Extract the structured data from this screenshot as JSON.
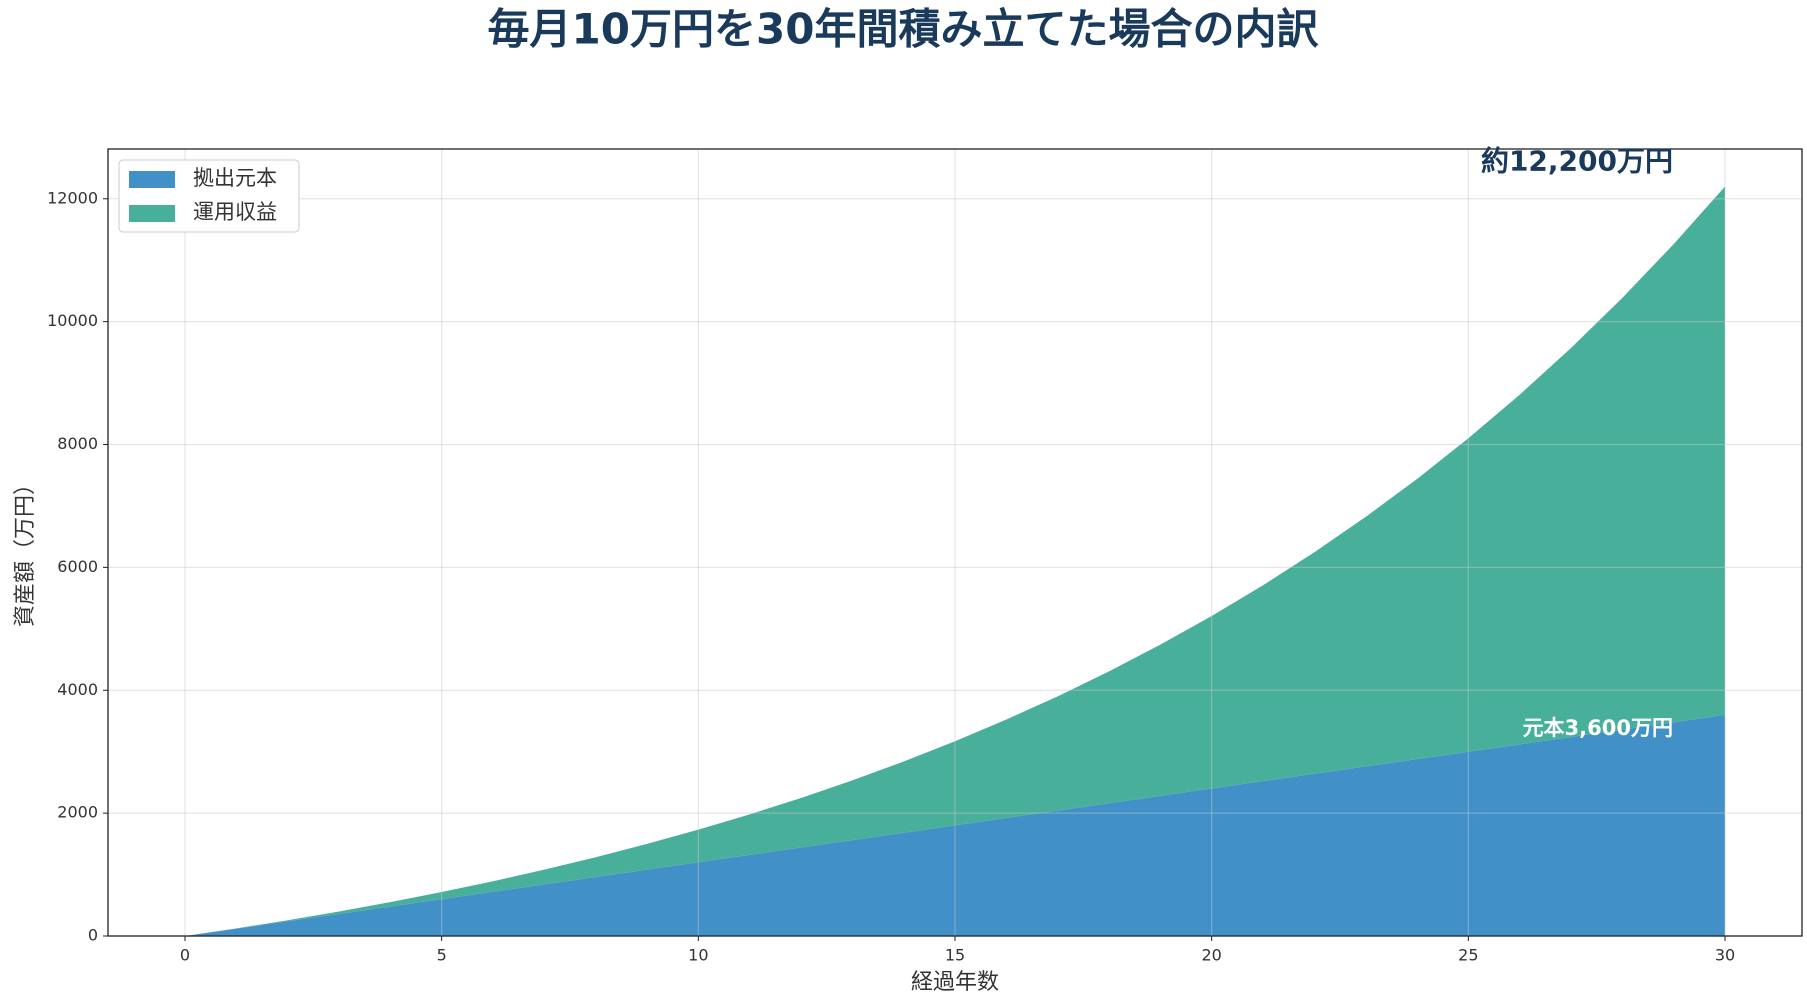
{
  "chart_data": {
    "type": "stacked_area",
    "title": "毎月10万円を30年間積み立てた場合の内訳",
    "x_label": "経過年数",
    "y_label": "資産額（万円）",
    "x": [
      0,
      1,
      2,
      3,
      4,
      5,
      6,
      7,
      8,
      9,
      10,
      11,
      12,
      13,
      14,
      15,
      16,
      17,
      18,
      19,
      20,
      21,
      22,
      23,
      24,
      25,
      26,
      27,
      28,
      29,
      30
    ],
    "series": [
      {
        "name": "拠出元本",
        "color": "#4191c8",
        "values": [
          0,
          120,
          240,
          360,
          480,
          600,
          720,
          840,
          960,
          1080,
          1200,
          1320,
          1440,
          1560,
          1680,
          1800,
          1920,
          2040,
          2160,
          2280,
          2400,
          2520,
          2640,
          2760,
          2880,
          3000,
          3120,
          3240,
          3360,
          3480,
          3600
        ]
      },
      {
        "name": "運用収益",
        "color": "#48b09a",
        "values": [
          0,
          4,
          17,
          39,
          72,
          116,
          172,
          240,
          322,
          419,
          531,
          660,
          807,
          973,
          1160,
          1370,
          1603,
          1861,
          2147,
          2463,
          2809,
          3190,
          3606,
          4062,
          4559,
          5101,
          5690,
          6331,
          7027,
          7782,
          8600
        ]
      }
    ],
    "annotations": [
      "約12,200万円",
      "元本3,600万円"
    ],
    "xlim": [
      -1.5,
      31.5
    ],
    "xticks": [
      0,
      5,
      10,
      15,
      20,
      25,
      30
    ],
    "ylim": [
      0,
      12810
    ],
    "yticks": [
      0,
      2000,
      4000,
      6000,
      8000,
      10000,
      12000
    ],
    "grid": true,
    "legend": "upper left"
  }
}
